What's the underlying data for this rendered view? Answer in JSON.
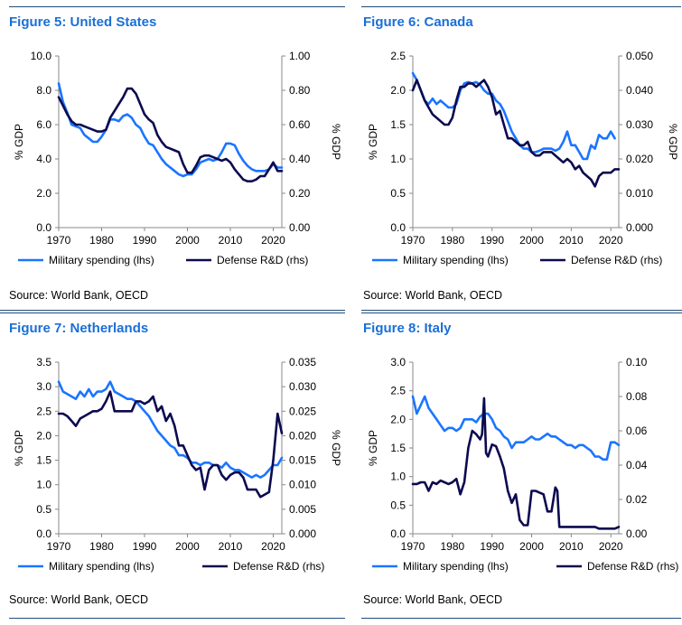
{
  "legend": {
    "military": "Military spending (lhs)",
    "rd": "Defense R&D (rhs)"
  },
  "colors": {
    "military": "#1a75ff",
    "rd": "#0c0a4f",
    "title": "#1a6fd6",
    "rule": "#1f4e79"
  },
  "chart_data": [
    {
      "type": "line",
      "title": "Figure 5: United States",
      "source": "Source: World Bank, OECD",
      "ylabel_left": "% GDP",
      "ylabel_right": "% GDP",
      "xlim": [
        1970,
        2022
      ],
      "xticks": [
        1970,
        1980,
        1990,
        2000,
        2010,
        2020
      ],
      "ylim_left": [
        0,
        10
      ],
      "yticks_left": [
        "0.0",
        "2.0",
        "4.0",
        "6.0",
        "8.0",
        "10.0"
      ],
      "ylim_right": [
        0,
        1
      ],
      "yticks_right": [
        "0.00",
        "0.20",
        "0.40",
        "0.60",
        "0.80",
        "1.00"
      ],
      "series": [
        {
          "name": "Military spending (lhs)",
          "axis": "left",
          "x": [
            1970,
            1971,
            1972,
            1973,
            1974,
            1975,
            1976,
            1977,
            1978,
            1979,
            1980,
            1981,
            1982,
            1983,
            1984,
            1985,
            1986,
            1987,
            1988,
            1989,
            1990,
            1991,
            1992,
            1993,
            1994,
            1995,
            1996,
            1997,
            1998,
            1999,
            2000,
            2001,
            2002,
            2003,
            2004,
            2005,
            2006,
            2007,
            2008,
            2009,
            2010,
            2011,
            2012,
            2013,
            2014,
            2015,
            2016,
            2017,
            2018,
            2019,
            2020,
            2021,
            2022
          ],
          "y": [
            8.4,
            7.3,
            6.7,
            6.0,
            5.9,
            5.8,
            5.4,
            5.2,
            5.0,
            5.0,
            5.3,
            5.7,
            6.3,
            6.3,
            6.2,
            6.5,
            6.6,
            6.4,
            6.0,
            5.8,
            5.3,
            4.9,
            4.8,
            4.4,
            4.0,
            3.7,
            3.5,
            3.3,
            3.1,
            3.0,
            3.1,
            3.1,
            3.4,
            3.8,
            3.9,
            4.0,
            3.9,
            4.0,
            4.4,
            4.9,
            4.9,
            4.8,
            4.3,
            3.9,
            3.6,
            3.4,
            3.3,
            3.3,
            3.3,
            3.4,
            3.7,
            3.5,
            3.5
          ]
        },
        {
          "name": "Defense R&D (rhs)",
          "axis": "right",
          "x": [
            1970,
            1971,
            1972,
            1973,
            1974,
            1975,
            1976,
            1977,
            1978,
            1979,
            1980,
            1981,
            1982,
            1983,
            1984,
            1985,
            1986,
            1987,
            1988,
            1989,
            1990,
            1991,
            1992,
            1993,
            1994,
            1995,
            1996,
            1997,
            1998,
            1999,
            2000,
            2001,
            2002,
            2003,
            2004,
            2005,
            2006,
            2007,
            2008,
            2009,
            2010,
            2011,
            2012,
            2013,
            2014,
            2015,
            2016,
            2017,
            2018,
            2019,
            2020,
            2021,
            2022
          ],
          "y": [
            0.76,
            0.71,
            0.66,
            0.62,
            0.6,
            0.6,
            0.59,
            0.58,
            0.57,
            0.56,
            0.56,
            0.57,
            0.64,
            0.68,
            0.72,
            0.76,
            0.81,
            0.81,
            0.78,
            0.72,
            0.66,
            0.63,
            0.61,
            0.54,
            0.5,
            0.47,
            0.46,
            0.45,
            0.44,
            0.37,
            0.32,
            0.32,
            0.36,
            0.41,
            0.42,
            0.42,
            0.41,
            0.4,
            0.39,
            0.4,
            0.38,
            0.34,
            0.31,
            0.28,
            0.27,
            0.27,
            0.28,
            0.3,
            0.3,
            0.34,
            0.38,
            0.33,
            0.33
          ]
        }
      ]
    },
    {
      "type": "line",
      "title": "Figure 6: Canada",
      "source": "Source: World Bank, OECD",
      "ylabel_left": "% GDP",
      "ylabel_right": "% GDP",
      "xlim": [
        1970,
        2022
      ],
      "xticks": [
        1970,
        1980,
        1990,
        2000,
        2010,
        2020
      ],
      "ylim_left": [
        0,
        2.5
      ],
      "yticks_left": [
        "0.0",
        "0.5",
        "1.0",
        "1.5",
        "2.0",
        "2.5"
      ],
      "ylim_right": [
        0,
        0.05
      ],
      "yticks_right": [
        "0.000",
        "0.010",
        "0.020",
        "0.030",
        "0.040",
        "0.050"
      ],
      "series": [
        {
          "name": "Military spending (lhs)",
          "axis": "left",
          "x": [
            1970,
            1971,
            1972,
            1973,
            1974,
            1975,
            1976,
            1977,
            1978,
            1979,
            1980,
            1981,
            1982,
            1983,
            1984,
            1985,
            1986,
            1987,
            1988,
            1989,
            1990,
            1991,
            1992,
            1993,
            1994,
            1995,
            1996,
            1997,
            1998,
            1999,
            2000,
            2001,
            2002,
            2003,
            2004,
            2005,
            2006,
            2007,
            2008,
            2009,
            2010,
            2011,
            2012,
            2013,
            2014,
            2015,
            2016,
            2017,
            2018,
            2019,
            2020,
            2021
          ],
          "y": [
            2.25,
            2.15,
            2.0,
            1.85,
            1.8,
            1.88,
            1.8,
            1.85,
            1.8,
            1.75,
            1.75,
            1.8,
            2.0,
            2.1,
            2.12,
            2.1,
            2.12,
            2.08,
            2.0,
            1.95,
            1.95,
            1.85,
            1.8,
            1.7,
            1.55,
            1.4,
            1.3,
            1.2,
            1.15,
            1.15,
            1.1,
            1.1,
            1.12,
            1.15,
            1.15,
            1.15,
            1.12,
            1.15,
            1.25,
            1.4,
            1.2,
            1.2,
            1.1,
            1.0,
            1.0,
            1.2,
            1.15,
            1.35,
            1.3,
            1.3,
            1.4,
            1.3
          ]
        },
        {
          "name": "Defense R&D (rhs)",
          "axis": "right",
          "x": [
            1970,
            1971,
            1972,
            1973,
            1974,
            1975,
            1976,
            1977,
            1978,
            1979,
            1980,
            1981,
            1982,
            1983,
            1984,
            1985,
            1986,
            1987,
            1988,
            1989,
            1990,
            1991,
            1992,
            1993,
            1994,
            1995,
            1996,
            1997,
            1998,
            1999,
            2000,
            2001,
            2002,
            2003,
            2004,
            2005,
            2006,
            2007,
            2008,
            2009,
            2010,
            2011,
            2012,
            2013,
            2014,
            2015,
            2016,
            2017,
            2018,
            2019,
            2020,
            2021,
            2022
          ],
          "y": [
            0.04,
            0.043,
            0.04,
            0.037,
            0.035,
            0.033,
            0.032,
            0.031,
            0.03,
            0.03,
            0.032,
            0.037,
            0.041,
            0.041,
            0.042,
            0.042,
            0.041,
            0.042,
            0.043,
            0.041,
            0.038,
            0.033,
            0.034,
            0.03,
            0.026,
            0.026,
            0.025,
            0.024,
            0.024,
            0.025,
            0.022,
            0.021,
            0.021,
            0.022,
            0.022,
            0.022,
            0.021,
            0.02,
            0.019,
            0.02,
            0.019,
            0.017,
            0.018,
            0.016,
            0.015,
            0.014,
            0.012,
            0.015,
            0.016,
            0.016,
            0.016,
            0.017,
            0.017
          ]
        }
      ]
    },
    {
      "type": "line",
      "title": "Figure 7: Netherlands",
      "source": "Source: World Bank, OECD",
      "ylabel_left": "% GDP",
      "ylabel_right": "% GDP",
      "xlim": [
        1970,
        2022
      ],
      "xticks": [
        1970,
        1980,
        1990,
        2000,
        2010,
        2020
      ],
      "ylim_left": [
        0,
        3.5
      ],
      "yticks_left": [
        "0.0",
        "0.5",
        "1.0",
        "1.5",
        "2.0",
        "2.5",
        "3.0",
        "3.5"
      ],
      "ylim_right": [
        0,
        0.035
      ],
      "yticks_right": [
        "0.000",
        "0.005",
        "0.010",
        "0.015",
        "0.020",
        "0.025",
        "0.030",
        "0.035"
      ],
      "series": [
        {
          "name": "Military spending (lhs)",
          "axis": "left",
          "x": [
            1970,
            1971,
            1972,
            1973,
            1974,
            1975,
            1976,
            1977,
            1978,
            1979,
            1980,
            1981,
            1982,
            1983,
            1984,
            1985,
            1986,
            1987,
            1988,
            1989,
            1990,
            1991,
            1992,
            1993,
            1994,
            1995,
            1996,
            1997,
            1998,
            1999,
            2000,
            2001,
            2002,
            2003,
            2004,
            2005,
            2006,
            2007,
            2008,
            2009,
            2010,
            2011,
            2012,
            2013,
            2014,
            2015,
            2016,
            2017,
            2018,
            2019,
            2020,
            2021,
            2022
          ],
          "y": [
            3.1,
            2.9,
            2.85,
            2.8,
            2.75,
            2.9,
            2.8,
            2.95,
            2.8,
            2.9,
            2.9,
            2.95,
            3.1,
            2.9,
            2.85,
            2.8,
            2.75,
            2.75,
            2.7,
            2.6,
            2.5,
            2.4,
            2.25,
            2.1,
            2.0,
            1.9,
            1.8,
            1.75,
            1.6,
            1.6,
            1.55,
            1.45,
            1.45,
            1.4,
            1.45,
            1.45,
            1.4,
            1.4,
            1.35,
            1.45,
            1.35,
            1.3,
            1.3,
            1.25,
            1.2,
            1.15,
            1.2,
            1.15,
            1.2,
            1.3,
            1.4,
            1.4,
            1.55
          ]
        },
        {
          "name": "Defense R&D (rhs)",
          "axis": "right",
          "x": [
            1970,
            1971,
            1972,
            1973,
            1974,
            1975,
            1976,
            1977,
            1978,
            1979,
            1980,
            1981,
            1982,
            1983,
            1984,
            1985,
            1986,
            1987,
            1988,
            1989,
            1990,
            1991,
            1992,
            1993,
            1994,
            1995,
            1996,
            1997,
            1998,
            1999,
            2000,
            2001,
            2002,
            2003,
            2004,
            2005,
            2006,
            2007,
            2008,
            2009,
            2010,
            2011,
            2012,
            2013,
            2014,
            2015,
            2016,
            2017,
            2018,
            2019,
            2020,
            2021,
            2022
          ],
          "y": [
            0.0245,
            0.0245,
            0.024,
            0.023,
            0.022,
            0.0235,
            0.024,
            0.0245,
            0.025,
            0.025,
            0.0255,
            0.027,
            0.029,
            0.025,
            0.025,
            0.025,
            0.025,
            0.025,
            0.027,
            0.027,
            0.0265,
            0.027,
            0.028,
            0.025,
            0.026,
            0.023,
            0.0245,
            0.022,
            0.018,
            0.018,
            0.016,
            0.014,
            0.013,
            0.0135,
            0.009,
            0.013,
            0.014,
            0.014,
            0.012,
            0.011,
            0.012,
            0.0125,
            0.0125,
            0.0115,
            0.009,
            0.009,
            0.009,
            0.0075,
            0.008,
            0.0085,
            0.015,
            0.0245,
            0.0205
          ]
        }
      ]
    },
    {
      "type": "line",
      "title": "Figure 8: Italy",
      "source": "Source: World Bank, OECD",
      "ylabel_left": "% GDP",
      "ylabel_right": "",
      "xlim": [
        1970,
        2022
      ],
      "xticks": [
        1970,
        1980,
        1990,
        2000,
        2010,
        2020
      ],
      "ylim_left": [
        0,
        3.0
      ],
      "yticks_left": [
        "0.0",
        "0.5",
        "1.0",
        "1.5",
        "2.0",
        "2.5",
        "3.0"
      ],
      "ylim_right": [
        0,
        0.1
      ],
      "yticks_right": [
        "0.00",
        "0.02",
        "0.04",
        "0.06",
        "0.08",
        "0.10"
      ],
      "series": [
        {
          "name": "Military spending (lhs)",
          "axis": "left",
          "x": [
            1970,
            1971,
            1972,
            1973,
            1974,
            1975,
            1976,
            1977,
            1978,
            1979,
            1980,
            1981,
            1982,
            1983,
            1984,
            1985,
            1986,
            1987,
            1988,
            1989,
            1990,
            1991,
            1992,
            1993,
            1994,
            1995,
            1996,
            1997,
            1998,
            1999,
            2000,
            2001,
            2002,
            2003,
            2004,
            2005,
            2006,
            2007,
            2008,
            2009,
            2010,
            2011,
            2012,
            2013,
            2014,
            2015,
            2016,
            2017,
            2018,
            2019,
            2020,
            2021,
            2022
          ],
          "y": [
            2.4,
            2.1,
            2.25,
            2.4,
            2.2,
            2.1,
            2.0,
            1.9,
            1.8,
            1.85,
            1.85,
            1.8,
            1.85,
            2.0,
            2.0,
            2.0,
            1.95,
            2.05,
            2.1,
            2.1,
            2.0,
            1.85,
            1.8,
            1.7,
            1.65,
            1.5,
            1.6,
            1.6,
            1.6,
            1.65,
            1.7,
            1.65,
            1.65,
            1.7,
            1.75,
            1.7,
            1.7,
            1.65,
            1.6,
            1.55,
            1.55,
            1.5,
            1.55,
            1.55,
            1.5,
            1.45,
            1.35,
            1.35,
            1.3,
            1.3,
            1.6,
            1.6,
            1.55
          ]
        },
        {
          "name": "Defense R&D (rhs)",
          "axis": "right",
          "x": [
            1970,
            1971,
            1972,
            1973,
            1974,
            1975,
            1976,
            1977,
            1978,
            1979,
            1980,
            1981,
            1982,
            1983,
            1984,
            1985,
            1986,
            1987,
            1987.5,
            1988,
            1988.5,
            1989,
            1990,
            1991,
            1992,
            1993,
            1994,
            1995,
            1996,
            1997,
            1998,
            1999,
            2000,
            2001,
            2002,
            2003,
            2004,
            2005,
            2006,
            2006.5,
            2007,
            2008,
            2009,
            2010,
            2011,
            2012,
            2013,
            2014,
            2015,
            2016,
            2017,
            2018,
            2019,
            2020,
            2021,
            2022
          ],
          "y": [
            0.029,
            0.029,
            0.03,
            0.03,
            0.025,
            0.03,
            0.029,
            0.031,
            0.03,
            0.029,
            0.03,
            0.032,
            0.023,
            0.03,
            0.05,
            0.06,
            0.058,
            0.055,
            0.058,
            0.079,
            0.047,
            0.045,
            0.052,
            0.051,
            0.045,
            0.038,
            0.025,
            0.018,
            0.023,
            0.008,
            0.005,
            0.005,
            0.025,
            0.025,
            0.024,
            0.023,
            0.013,
            0.013,
            0.027,
            0.025,
            0.004,
            0.004,
            0.004,
            0.004,
            0.004,
            0.004,
            0.004,
            0.004,
            0.004,
            0.004,
            0.003,
            0.003,
            0.003,
            0.003,
            0.003,
            0.004
          ]
        }
      ]
    }
  ]
}
